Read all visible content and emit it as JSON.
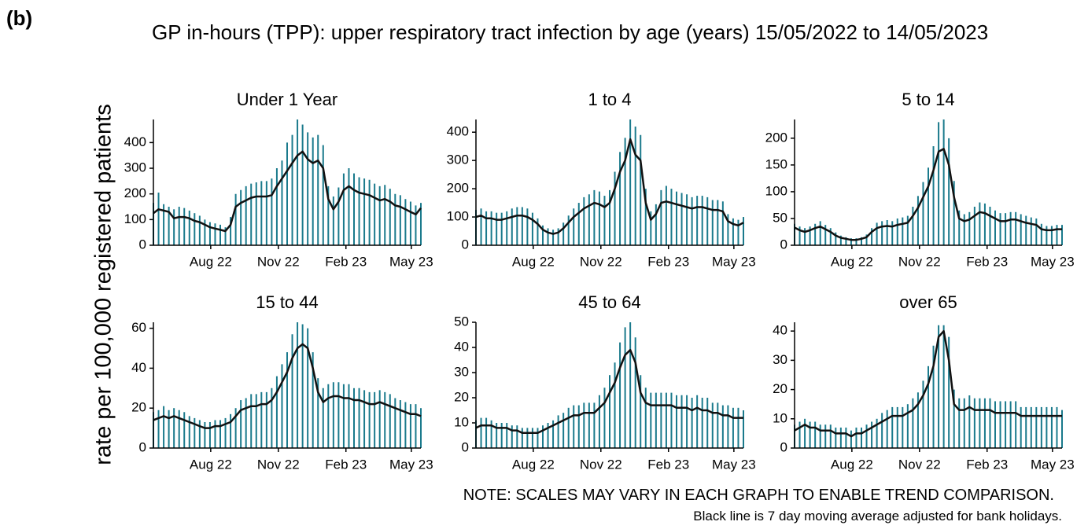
{
  "chart_data": {
    "type": "line",
    "tag": "(b)",
    "title": "GP in-hours (TPP): upper respiratory tract infection by age (years) 15/05/2022 to 14/05/2023",
    "y_label": "rate per 100,000 registered patients",
    "note": "NOTE: SCALES MAY VARY IN EACH GRAPH TO ENABLE TREND COMPARISON.",
    "note2": "Black line is 7 day moving average adjusted for bank holidays.",
    "x": [
      0,
      7,
      14,
      21,
      28,
      35,
      42,
      49,
      56,
      63,
      70,
      77,
      84,
      91,
      98,
      105,
      112,
      119,
      126,
      133,
      140,
      147,
      154,
      161,
      168,
      175,
      182,
      189,
      196,
      203,
      210,
      217,
      224,
      231,
      238,
      245,
      252,
      259,
      266,
      273,
      280,
      287,
      294,
      301,
      308,
      315,
      322,
      329,
      336,
      343,
      350,
      357,
      364
    ],
    "xlim": [
      0,
      364
    ],
    "xticks": [
      {
        "value": 78,
        "label": "Aug 22"
      },
      {
        "value": 170,
        "label": "Nov 22"
      },
      {
        "value": 262,
        "label": "Feb 23"
      },
      {
        "value": 351,
        "label": "May 23"
      }
    ],
    "panels": [
      {
        "title": "Under 1 Year",
        "ylim": [
          0,
          490
        ],
        "yticks": [
          0,
          100,
          200,
          300,
          400
        ],
        "series": [
          {
            "color": "#1a7a8c",
            "values": [
              165,
              205,
              160,
              150,
              140,
              150,
              145,
              135,
              125,
              115,
              100,
              90,
              85,
              80,
              70,
              110,
              200,
              215,
              230,
              240,
              245,
              250,
              250,
              260,
              300,
              330,
              400,
              430,
              490,
              470,
              440,
              420,
              430,
              390,
              230,
              190,
              225,
              280,
              300,
              280,
              265,
              260,
              255,
              240,
              230,
              235,
              220,
              200,
              195,
              180,
              170,
              155,
              165
            ]
          },
          {
            "color": "#111111",
            "values": [
              125,
              140,
              135,
              130,
              105,
              110,
              110,
              105,
              95,
              90,
              80,
              70,
              65,
              60,
              55,
              80,
              150,
              165,
              175,
              185,
              190,
              190,
              190,
              195,
              230,
              260,
              290,
              320,
              350,
              365,
              335,
              320,
              330,
              300,
              180,
              140,
              170,
              215,
              230,
              215,
              205,
              200,
              195,
              185,
              175,
              180,
              170,
              155,
              150,
              140,
              130,
              120,
              145
            ]
          }
        ]
      },
      {
        "title": "1 to 4",
        "ylim": [
          0,
          445
        ],
        "yticks": [
          0,
          100,
          200,
          300,
          400
        ],
        "series": [
          {
            "color": "#1a7a8c",
            "values": [
              125,
              130,
              120,
              120,
              115,
              115,
              120,
              130,
              135,
              135,
              130,
              115,
              95,
              70,
              60,
              55,
              60,
              80,
              105,
              130,
              150,
              170,
              180,
              195,
              190,
              175,
              195,
              260,
              330,
              380,
              445,
              420,
              390,
              200,
              120,
              145,
              195,
              210,
              200,
              190,
              185,
              180,
              170,
              175,
              175,
              170,
              160,
              160,
              155,
              110,
              95,
              90,
              100
            ]
          },
          {
            "color": "#111111",
            "values": [
              100,
              105,
              95,
              95,
              90,
              90,
              95,
              100,
              105,
              105,
              100,
              90,
              75,
              55,
              45,
              40,
              45,
              60,
              80,
              100,
              115,
              130,
              140,
              150,
              145,
              135,
              150,
              200,
              260,
              300,
              375,
              320,
              300,
              150,
              90,
              110,
              150,
              155,
              150,
              145,
              140,
              135,
              130,
              135,
              135,
              130,
              125,
              125,
              120,
              85,
              75,
              70,
              80
            ]
          }
        ]
      },
      {
        "title": "5 to 14",
        "ylim": [
          0,
          235
        ],
        "yticks": [
          0,
          50,
          100,
          150,
          200
        ],
        "series": [
          {
            "color": "#1a7a8c",
            "values": [
              40,
              35,
              32,
              35,
              40,
              45,
              38,
              32,
              24,
              18,
              15,
              13,
              13,
              15,
              20,
              32,
              42,
              45,
              47,
              45,
              50,
              52,
              55,
              72,
              92,
              118,
              145,
              185,
              230,
              235,
              200,
              120,
              65,
              58,
              62,
              72,
              80,
              78,
              72,
              65,
              60,
              60,
              62,
              62,
              58,
              55,
              52,
              50,
              40,
              36,
              36,
              38,
              38
            ]
          },
          {
            "color": "#111111",
            "values": [
              33,
              28,
              25,
              28,
              32,
              35,
              30,
              25,
              18,
              14,
              12,
              10,
              10,
              12,
              15,
              25,
              32,
              35,
              36,
              35,
              38,
              40,
              42,
              55,
              70,
              90,
              110,
              140,
              175,
              180,
              150,
              90,
              50,
              45,
              48,
              55,
              62,
              60,
              55,
              50,
              45,
              45,
              48,
              48,
              45,
              42,
              40,
              38,
              30,
              28,
              28,
              30,
              30
            ]
          }
        ]
      },
      {
        "title": "15 to 44",
        "ylim": [
          0,
          63
        ],
        "yticks": [
          0,
          20,
          40,
          60
        ],
        "series": [
          {
            "color": "#1a7a8c",
            "values": [
              18,
              19,
              21,
              19,
              20,
              19,
              18,
              16,
              15,
              14,
              13,
              13,
              14,
              14,
              15,
              17,
              20,
              24,
              25,
              27,
              27,
              28,
              28,
              30,
              36,
              42,
              48,
              57,
              63,
              62,
              60,
              48,
              35,
              30,
              32,
              33,
              33,
              32,
              32,
              30,
              30,
              29,
              28,
              28,
              29,
              28,
              27,
              25,
              24,
              23,
              22,
              22,
              20
            ]
          },
          {
            "color": "#111111",
            "values": [
              14,
              15,
              16,
              15,
              16,
              15,
              14,
              13,
              12,
              11,
              10,
              10,
              11,
              11,
              12,
              13,
              16,
              19,
              20,
              21,
              21,
              22,
              22,
              24,
              28,
              33,
              38,
              45,
              50,
              52,
              50,
              40,
              28,
              23,
              25,
              26,
              26,
              25,
              25,
              24,
              24,
              23,
              22,
              22,
              23,
              22,
              21,
              20,
              19,
              18,
              17,
              17,
              16
            ]
          }
        ]
      },
      {
        "title": "45 to 64",
        "ylim": [
          0,
          50
        ],
        "yticks": [
          0,
          10,
          20,
          30,
          40,
          50
        ],
        "series": [
          {
            "color": "#1a7a8c",
            "values": [
              11,
              12,
              12,
              11,
              10,
              10,
              10,
              9,
              9,
              8,
              8,
              8,
              8,
              9,
              10,
              11,
              13,
              14,
              16,
              17,
              17,
              18,
              18,
              18,
              21,
              24,
              29,
              34,
              42,
              48,
              50,
              44,
              29,
              24,
              22,
              22,
              22,
              22,
              22,
              21,
              21,
              21,
              20,
              21,
              20,
              20,
              18,
              18,
              17,
              17,
              16,
              16,
              15
            ]
          },
          {
            "color": "#111111",
            "values": [
              8,
              9,
              9,
              9,
              8,
              8,
              8,
              7,
              7,
              6,
              6,
              6,
              6,
              7,
              8,
              9,
              10,
              11,
              12,
              13,
              13,
              14,
              14,
              14,
              16,
              18,
              22,
              26,
              32,
              37,
              39,
              34,
              22,
              18,
              17,
              17,
              17,
              17,
              17,
              16,
              16,
              16,
              15,
              16,
              15,
              15,
              14,
              14,
              13,
              13,
              12,
              12,
              12
            ]
          }
        ]
      },
      {
        "title": "over 65",
        "ylim": [
          0,
          43
        ],
        "yticks": [
          0,
          10,
          20,
          30,
          40
        ],
        "series": [
          {
            "color": "#1a7a8c",
            "values": [
              8,
              9,
              10,
              9,
              9,
              8,
              8,
              8,
              7,
              7,
              7,
              6,
              7,
              7,
              8,
              9,
              10,
              12,
              13,
              14,
              14,
              14,
              15,
              17,
              19,
              23,
              28,
              35,
              42,
              42,
              38,
              20,
              17,
              17,
              18,
              17,
              17,
              17,
              17,
              16,
              16,
              16,
              16,
              16,
              14,
              14,
              14,
              14,
              14,
              14,
              14,
              14,
              13
            ]
          },
          {
            "color": "#111111",
            "values": [
              6,
              7,
              8,
              7,
              7,
              6,
              6,
              6,
              5,
              5,
              5,
              4,
              5,
              5,
              6,
              7,
              8,
              9,
              10,
              11,
              11,
              11,
              12,
              13,
              15,
              18,
              22,
              28,
              38,
              40,
              30,
              15,
              13,
              13,
              14,
              13,
              13,
              13,
              13,
              12,
              12,
              12,
              12,
              12,
              11,
              11,
              11,
              11,
              11,
              11,
              11,
              11,
              11
            ]
          }
        ]
      }
    ]
  }
}
